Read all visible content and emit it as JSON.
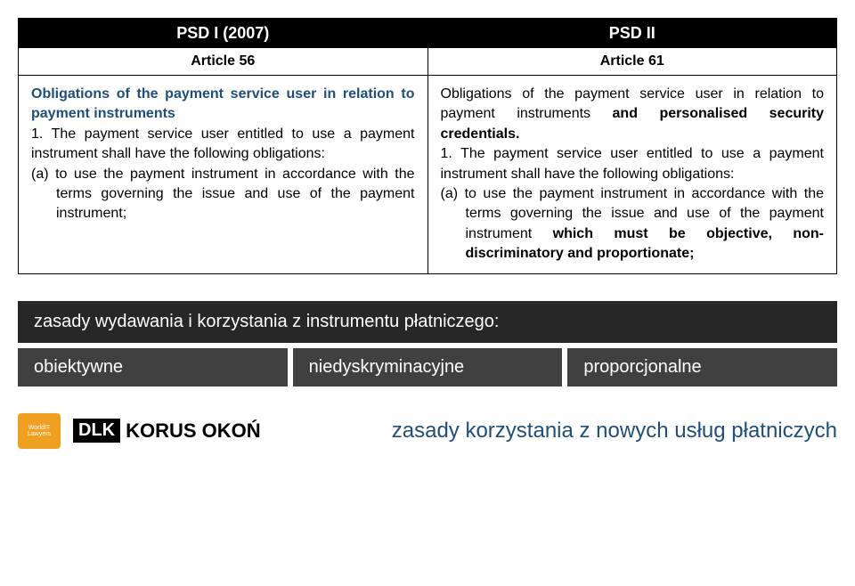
{
  "table": {
    "left": {
      "header1": "PSD I (2007)",
      "header2": "Article 56",
      "title": "Obligations of the payment service user in relation to payment instruments",
      "body_intro": "1. The payment service user entitled to use a payment instrument shall have the following obligations:",
      "body_a": "(a) to use the payment instrument in accordance with the terms governing the issue and use of the payment instrument;"
    },
    "right": {
      "header1": "PSD II",
      "header2": "Article 61",
      "title_part1": "Obligations of the payment service user in relation to payment instruments ",
      "title_bold": "and personalised security credentials.",
      "body_intro": "1. The payment service user entitled to use a payment instrument shall have the following obligations:",
      "body_a_pre": "(a) to use the payment instrument in accordance with the terms governing the issue and use of the payment instrument ",
      "body_a_bold": "which must be objective, non-discriminatory and proportionate;"
    }
  },
  "principles": {
    "header": "zasady wydawania i korzystania z instrumentu płatniczego:",
    "items": [
      "obiektywne",
      "niedyskryminacyjne",
      "proporcjonalne"
    ]
  },
  "footer": {
    "worldit": "WorldIT Lawyers",
    "dlk_mark": "DLK",
    "dlk_text": "KORUS OKOŃ",
    "tagline": "zasady korzystania z nowych usług płatniczych"
  },
  "colors": {
    "blue": "#1f4e79",
    "black": "#000000",
    "dark_grey": "#272727",
    "mid_grey": "#404040",
    "white": "#ffffff",
    "orange": "#f0a020"
  }
}
